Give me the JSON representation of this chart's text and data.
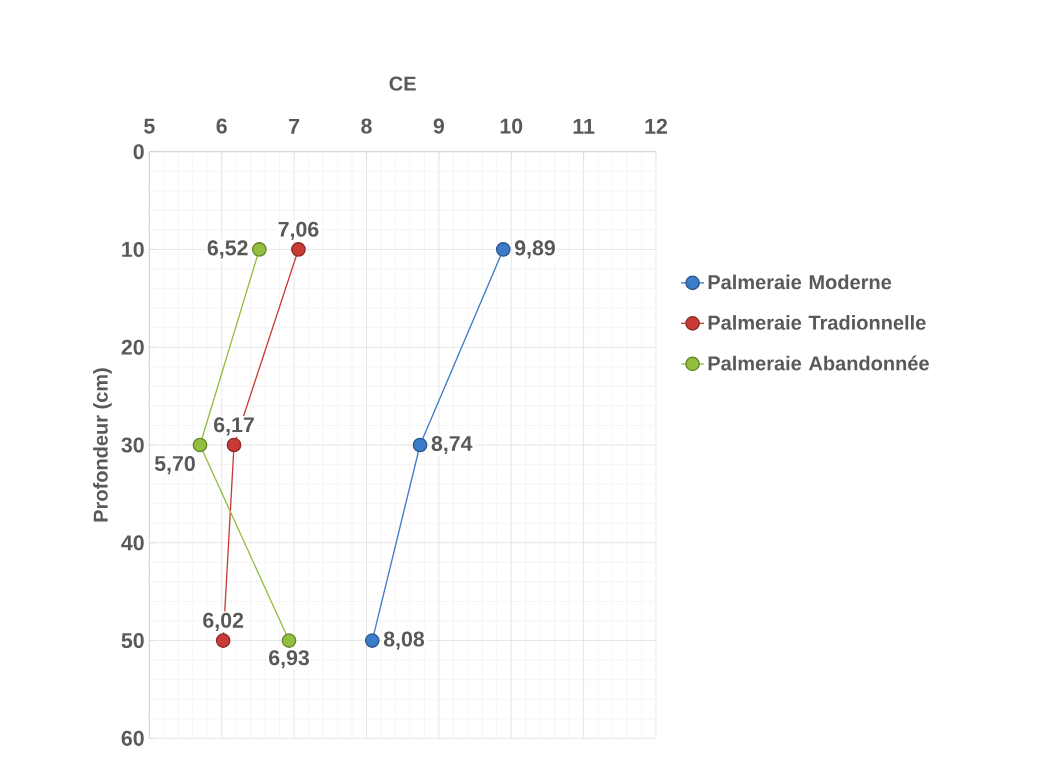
{
  "chart_data": {
    "type": "line",
    "xlabel": "CE",
    "ylabel": "Profondeur (cm)",
    "xlim": [
      5,
      12
    ],
    "xticks": [
      5,
      6,
      7,
      8,
      9,
      10,
      11,
      12
    ],
    "ylim": [
      60,
      0
    ],
    "yticks": [
      0,
      10,
      20,
      30,
      40,
      50,
      60
    ],
    "grid": true,
    "legend": "right",
    "marker": "circle",
    "series": [
      {
        "name": "Palmeraie Moderne",
        "color": "#3d7cc9",
        "x": [
          9.89,
          8.74,
          8.08
        ],
        "values": [
          10,
          30,
          50
        ]
      },
      {
        "name": "Palmeraie Tradionnelle",
        "color": "#c83b37",
        "x": [
          7.06,
          6.17,
          6.02
        ],
        "values": [
          10,
          30,
          50
        ]
      },
      {
        "name": "Palmeraie Abandonnée",
        "color": "#92bf3e",
        "x": [
          6.52,
          5.7,
          6.93
        ],
        "values": [
          10,
          30,
          50
        ]
      }
    ],
    "annotations": [
      {
        "text": "9,89",
        "x": 9.89,
        "y": 10
      },
      {
        "text": "8,74",
        "x": 8.74,
        "y": 30
      },
      {
        "text": "8,08",
        "x": 8.08,
        "y": 50
      },
      {
        "text": "7,06",
        "x": 7.06,
        "y": 10
      },
      {
        "text": "6,17",
        "x": 6.17,
        "y": 30
      },
      {
        "text": "6,02",
        "x": 6.02,
        "y": 50
      },
      {
        "text": "6,52",
        "x": 6.52,
        "y": 10
      },
      {
        "text": "5,70",
        "x": 5.7,
        "y": 30
      },
      {
        "text": "6,93",
        "x": 6.93,
        "y": 50
      }
    ]
  }
}
